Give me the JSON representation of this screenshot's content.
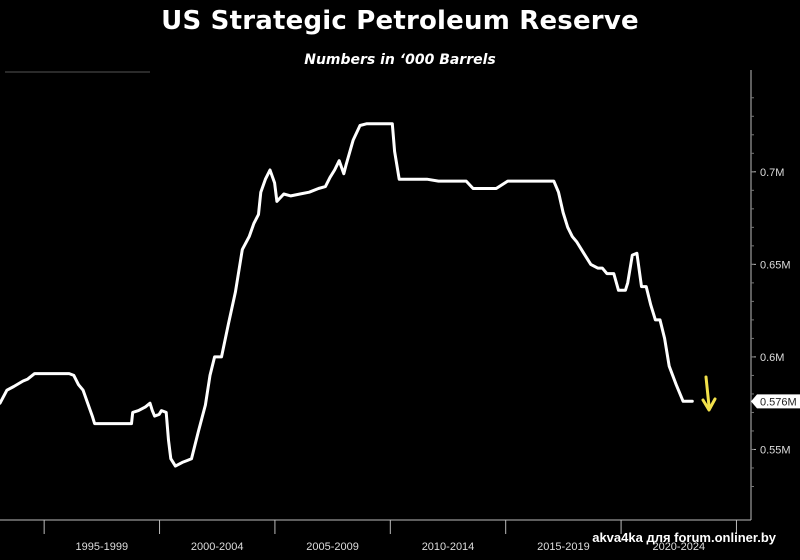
{
  "chart_data": {
    "type": "line",
    "title": "US Strategic Petroleum Reserve",
    "subtitle": "Numbers in ‘000 Barrels",
    "xlabel": "",
    "ylabel": "",
    "xlim": [
      1993.0,
      2025.5
    ],
    "ylim": [
      0.52,
      0.755
    ],
    "y_ticks": [
      0.55,
      0.6,
      0.65,
      0.7
    ],
    "y_tick_labels": [
      "0.55M",
      "0.6M",
      "0.65M",
      "0.7M"
    ],
    "x_tick_labels": [
      "1995-1999",
      "2000-2004",
      "2005-2009",
      "2010-2014",
      "2015-2019",
      "2020-2024"
    ],
    "last_value_label": "0.576M",
    "arrow_color": "#f2e14b",
    "line_color": "#ffffff",
    "grid": false,
    "series": [
      {
        "x": [
          1993.0,
          1993.3,
          1993.6,
          1994.0,
          1994.2,
          1994.5,
          1995.0,
          1995.5,
          1996.0,
          1996.2,
          1996.4,
          1996.6,
          1996.8,
          1997.0,
          1997.1,
          1997.3,
          1997.6,
          1998.0,
          1998.4,
          1998.7,
          1998.75,
          1999.0,
          1999.3,
          1999.5,
          1999.6,
          1999.7,
          1999.9,
          2000.0,
          2000.2,
          2000.3,
          2000.4,
          2000.6,
          2000.9,
          2001.1,
          2001.3,
          2001.6,
          2001.9,
          2002.1,
          2002.3,
          2002.6,
          2002.9,
          2003.2,
          2003.5,
          2003.8,
          2004.0,
          2004.2,
          2004.3,
          2004.5,
          2004.7,
          2004.9,
          2005.0,
          2005.3,
          2005.6,
          2006.0,
          2006.4,
          2006.8,
          2007.1,
          2007.3,
          2007.5,
          2007.7,
          2007.9,
          2008.0,
          2008.3,
          2008.6,
          2008.9,
          2009.0,
          2009.5,
          2010.0,
          2010.1,
          2010.3,
          2011.0,
          2011.5,
          2012.0,
          2012.5,
          2013.0,
          2013.2,
          2013.5,
          2014.0,
          2014.5,
          2015.0,
          2015.5,
          2016.0,
          2016.5,
          2017.0,
          2017.2,
          2017.4,
          2017.6,
          2017.8,
          2018.0,
          2018.3,
          2018.6,
          2018.9,
          2019.1,
          2019.3,
          2019.6,
          2019.8,
          2020.0,
          2020.1,
          2020.2,
          2020.4,
          2020.6,
          2020.8,
          2021.0,
          2021.2,
          2021.4,
          2021.6,
          2021.8,
          2022.0,
          2022.3,
          2022.6,
          2022.9,
          2023.0
        ],
        "y": [
          0.575,
          0.582,
          0.584,
          0.587,
          0.588,
          0.591,
          0.591,
          0.591,
          0.591,
          0.59,
          0.585,
          0.582,
          0.575,
          0.568,
          0.564,
          0.564,
          0.564,
          0.564,
          0.564,
          0.564,
          0.57,
          0.571,
          0.573,
          0.575,
          0.571,
          0.568,
          0.569,
          0.571,
          0.57,
          0.555,
          0.545,
          0.541,
          0.543,
          0.544,
          0.545,
          0.56,
          0.574,
          0.59,
          0.6,
          0.6,
          0.618,
          0.635,
          0.658,
          0.665,
          0.672,
          0.677,
          0.689,
          0.696,
          0.701,
          0.694,
          0.684,
          0.688,
          0.687,
          0.688,
          0.689,
          0.691,
          0.692,
          0.697,
          0.701,
          0.706,
          0.699,
          0.704,
          0.717,
          0.725,
          0.726,
          0.726,
          0.726,
          0.726,
          0.711,
          0.696,
          0.696,
          0.696,
          0.695,
          0.695,
          0.695,
          0.695,
          0.691,
          0.691,
          0.691,
          0.695,
          0.695,
          0.695,
          0.695,
          0.695,
          0.689,
          0.678,
          0.67,
          0.665,
          0.662,
          0.656,
          0.65,
          0.648,
          0.648,
          0.645,
          0.645,
          0.636,
          0.636,
          0.636,
          0.64,
          0.655,
          0.656,
          0.638,
          0.638,
          0.628,
          0.62,
          0.62,
          0.61,
          0.595,
          0.585,
          0.576,
          0.576,
          0.576
        ]
      }
    ]
  },
  "watermark": "akva4ka для forum.onliner.by"
}
